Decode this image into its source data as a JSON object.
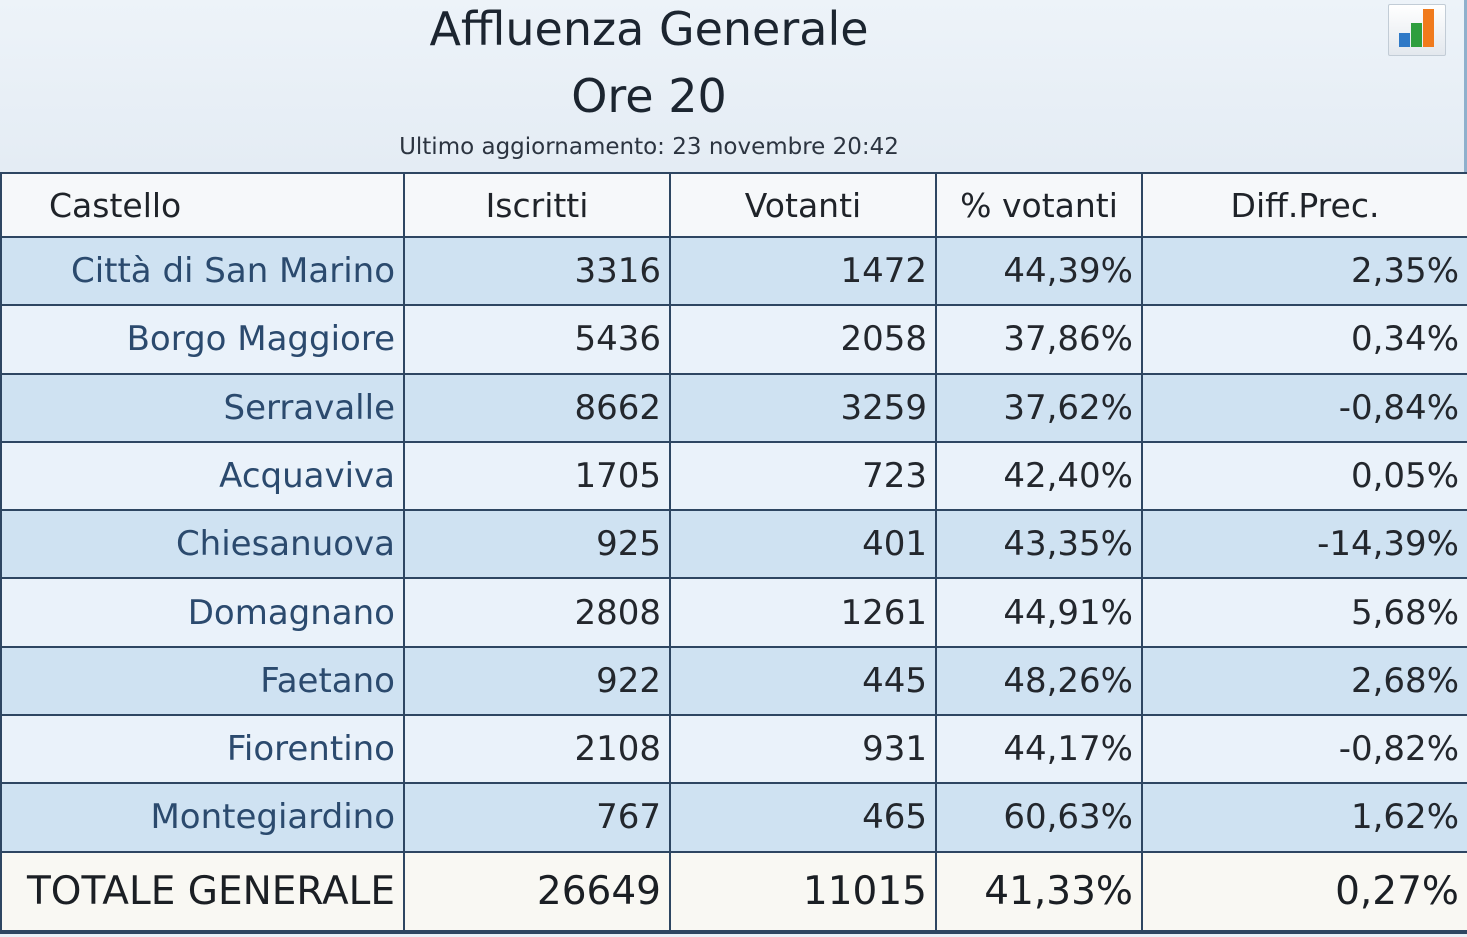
{
  "header": {
    "title_line1": "Affluenza Generale",
    "title_line2": "Ore 20",
    "updated": "Ultimo aggiornamento: 23 novembre 20:42",
    "chart_icon": "bar-chart-icon"
  },
  "table": {
    "columns": [
      "Castello",
      "Iscritti",
      "Votanti",
      "% votanti",
      "Diff.Prec."
    ],
    "rows": [
      [
        "Città di San Marino",
        "3316",
        "1472",
        "44,39%",
        "2,35%"
      ],
      [
        "Borgo Maggiore",
        "5436",
        "2058",
        "37,86%",
        "0,34%"
      ],
      [
        "Serravalle",
        "8662",
        "3259",
        "37,62%",
        "-0,84%"
      ],
      [
        "Acquaviva",
        "1705",
        "723",
        "42,40%",
        "0,05%"
      ],
      [
        "Chiesanuova",
        "925",
        "401",
        "43,35%",
        "-14,39%"
      ],
      [
        "Domagnano",
        "2808",
        "1261",
        "44,91%",
        "5,68%"
      ],
      [
        "Faetano",
        "922",
        "445",
        "48,26%",
        "2,68%"
      ],
      [
        "Fiorentino",
        "2108",
        "931",
        "44,17%",
        "-0,82%"
      ],
      [
        "Montegiardino",
        "767",
        "465",
        "60,63%",
        "1,62%"
      ]
    ],
    "total": [
      "TOTALE GENERALE",
      "26649",
      "11015",
      "41,33%",
      "0,27%"
    ]
  },
  "colors": {
    "row_dark": "#cfe2f2",
    "row_light": "#eaf2fa",
    "grid_line": "#2e4662",
    "name_text": "#2b4a6e"
  }
}
